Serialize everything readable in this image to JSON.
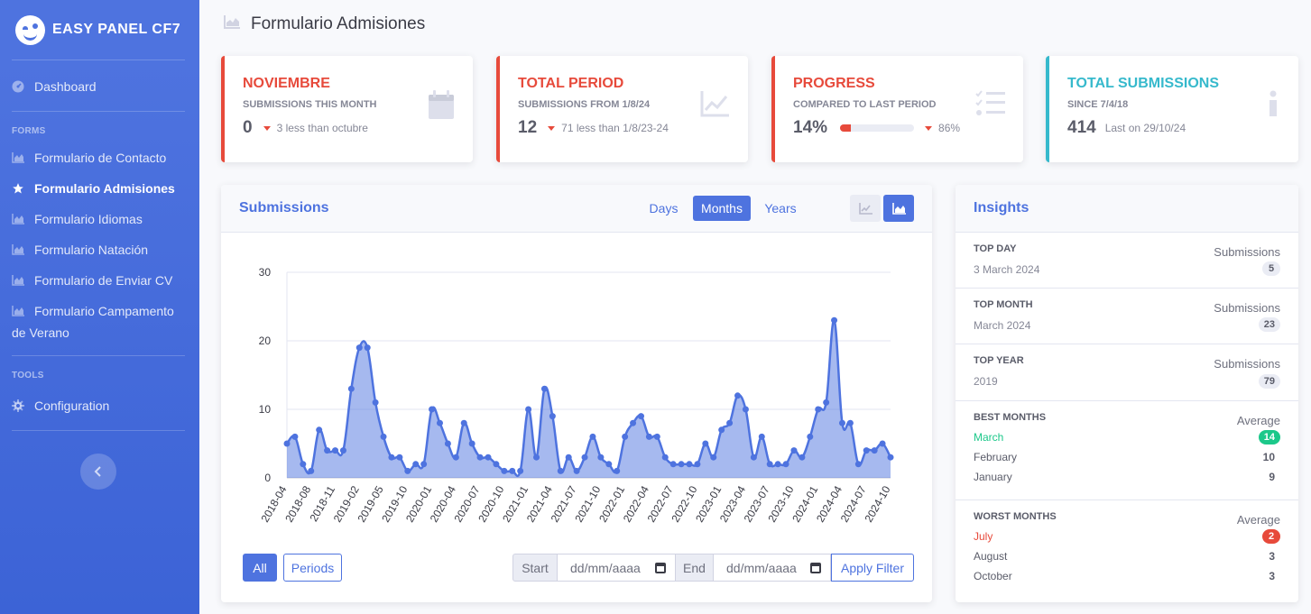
{
  "brand": {
    "name": "EASY PANEL CF7"
  },
  "sidebar": {
    "dashboard": "Dashboard",
    "forms_heading": "FORMS",
    "forms": [
      {
        "label": "Formulario de Contacto",
        "icon": "chart-area-icon",
        "active": false
      },
      {
        "label": "Formulario Admisiones",
        "icon": "star-icon",
        "active": true
      },
      {
        "label": "Formulario Idiomas",
        "icon": "chart-area-icon",
        "active": false
      },
      {
        "label": "Formulario Natación",
        "icon": "chart-area-icon",
        "active": false
      },
      {
        "label": "Formulario de Enviar CV",
        "icon": "chart-area-icon",
        "active": false
      },
      {
        "label": "Formulario Campamento de Verano",
        "icon": "chart-area-icon",
        "active": false
      }
    ],
    "tools_heading": "TOOLS",
    "configuration": "Configuration",
    "toggle_icon": "chevron-left-icon"
  },
  "page": {
    "title": "Formulario Admisiones"
  },
  "stats": [
    {
      "title": "NOVIEMBRE",
      "subtitle": "SUBMISSIONS THIS MONTH",
      "value": "0",
      "note": "3 less than octubre",
      "icon": "calendar-icon"
    },
    {
      "title": "TOTAL PERIOD",
      "subtitle": "SUBMISSIONS FROM 1/8/24",
      "value": "12",
      "note": "71 less than 1/8/23-24",
      "icon": "chart-line-icon"
    },
    {
      "title": "PROGRESS",
      "subtitle": "COMPARED TO LAST PERIOD",
      "value": "14%",
      "progress": 14,
      "note": "86%",
      "icon": "tasks-icon"
    },
    {
      "title": "TOTAL SUBMISSIONS",
      "subtitle": "SINCE 7/4/18",
      "value": "414",
      "note": "Last on 29/10/24",
      "icon": "info-icon"
    }
  ],
  "submissions": {
    "title": "Submissions",
    "ranges": [
      "Days",
      "Months",
      "Years"
    ],
    "active_range": "Months",
    "filter": {
      "all": "All",
      "periods": "Periods",
      "start": "Start",
      "end": "End",
      "date_placeholder": "dd/mm/aaaa",
      "apply": "Apply Filter"
    }
  },
  "chart_data": {
    "type": "area",
    "title": "",
    "xlabel": "",
    "ylabel": "",
    "ylim": [
      0,
      30
    ],
    "yticks": [
      0,
      10,
      20,
      30
    ],
    "grid": true,
    "x_start": "2018-04",
    "tick_labels": [
      "2018-04",
      "2018-08",
      "2018-11",
      "2019-02",
      "2019-05",
      "2019-10",
      "2020-01",
      "2020-04",
      "2020-07",
      "2020-10",
      "2021-01",
      "2021-04",
      "2021-07",
      "2021-10",
      "2022-01",
      "2022-04",
      "2022-07",
      "2022-10",
      "2023-01",
      "2023-04",
      "2023-07",
      "2023-10",
      "2024-01",
      "2024-04",
      "2024-07",
      "2024-10"
    ],
    "series": [
      {
        "values": [
          5,
          6,
          2,
          1,
          7,
          4,
          4,
          4,
          13,
          19,
          19,
          11,
          6,
          3,
          3,
          1,
          2,
          2,
          10,
          8,
          5,
          3,
          8,
          5,
          3,
          3,
          2,
          1,
          1,
          1,
          10,
          3,
          13,
          9,
          1,
          3,
          1,
          3,
          6,
          3,
          2,
          1,
          6,
          8,
          9,
          6,
          6,
          3,
          2,
          2,
          2,
          2,
          5,
          3,
          7,
          8,
          12,
          10,
          3,
          6,
          2,
          2,
          2,
          4,
          3,
          6,
          10,
          11,
          23,
          8,
          8,
          2,
          4,
          4,
          5,
          3
        ]
      }
    ],
    "color": "#4e73df"
  },
  "insights": {
    "title": "Insights",
    "rows": [
      {
        "label": "TOP DAY",
        "sub": "3 March 2024",
        "right": "Submissions",
        "badge": "5"
      },
      {
        "label": "TOP MONTH",
        "sub": "March 2024",
        "right": "Submissions",
        "badge": "23"
      },
      {
        "label": "TOP YEAR",
        "sub": "2019",
        "right": "Submissions",
        "badge": "79"
      }
    ],
    "best": {
      "label": "BEST MONTHS",
      "right": "Average",
      "items": [
        {
          "month": "March",
          "value": "14"
        },
        {
          "month": "February",
          "value": "10"
        },
        {
          "month": "January",
          "value": "9"
        }
      ]
    },
    "worst": {
      "label": "WORST MONTHS",
      "right": "Average",
      "items": [
        {
          "month": "July",
          "value": "2"
        },
        {
          "month": "August",
          "value": "3"
        },
        {
          "month": "October",
          "value": "3"
        }
      ]
    }
  }
}
